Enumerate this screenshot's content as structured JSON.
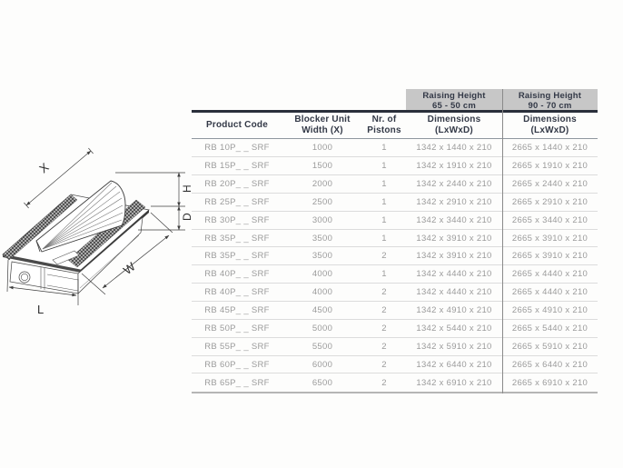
{
  "drawing": {
    "labels": {
      "x": "X",
      "h": "H",
      "d": "D",
      "w": "W",
      "l": "L"
    }
  },
  "table": {
    "column_group_headers": [
      {
        "line1": "Raising Height",
        "line2": "65 - 50 cm"
      },
      {
        "line1": "Raising Height",
        "line2": "90 - 70 cm"
      }
    ],
    "columns": [
      {
        "line1": "Product Code",
        "line2": ""
      },
      {
        "line1": "Blocker Unit",
        "line2": "Width (X)"
      },
      {
        "line1": "Nr. of",
        "line2": "Pistons"
      },
      {
        "line1": "Dimensions",
        "line2": "(LxWxD)"
      },
      {
        "line1": "Dimensions",
        "line2": "(LxWxD)"
      }
    ],
    "rows": [
      [
        "RB 10P_ _ SRF",
        "1000",
        "1",
        "1342 x 1440 x 210",
        "2665 x 1440 x 210"
      ],
      [
        "RB 15P_ _ SRF",
        "1500",
        "1",
        "1342 x 1910 x 210",
        "2665 x 1910 x 210"
      ],
      [
        "RB 20P_ _ SRF",
        "2000",
        "1",
        "1342 x 2440 x 210",
        "2665 x 2440 x 210"
      ],
      [
        "RB 25P_ _ SRF",
        "2500",
        "1",
        "1342 x 2910 x 210",
        "2665 x 2910 x 210"
      ],
      [
        "RB 30P_ _ SRF",
        "3000",
        "1",
        "1342 x 3440 x 210",
        "2665 x 3440 x 210"
      ],
      [
        "RB 35P_ _ SRF",
        "3500",
        "1",
        "1342 x 3910 x 210",
        "2665 x 3910 x 210"
      ],
      [
        "RB 35P_ _ SRF",
        "3500",
        "2",
        "1342 x 3910 x 210",
        "2665 x 3910 x 210"
      ],
      [
        "RB 40P_ _ SRF",
        "4000",
        "1",
        "1342 x 4440 x 210",
        "2665 x 4440 x 210"
      ],
      [
        "RB 40P_ _ SRF",
        "4000",
        "2",
        "1342 x 4440 x 210",
        "2665 x 4440 x 210"
      ],
      [
        "RB 45P_ _ SRF",
        "4500",
        "2",
        "1342 x 4910 x 210",
        "2665 x 4910 x 210"
      ],
      [
        "RB 50P_ _ SRF",
        "5000",
        "2",
        "1342 x 5440 x 210",
        "2665 x 5440 x 210"
      ],
      [
        "RB 55P_ _ SRF",
        "5500",
        "2",
        "1342 x 5910 x 210",
        "2665 x 5910 x 210"
      ],
      [
        "RB 60P_ _ SRF",
        "6000",
        "2",
        "1342 x 6440 x 210",
        "2665 x 6440 x 210"
      ],
      [
        "RB 65P_ _ SRF",
        "6500",
        "2",
        "1342 x 6910 x 210",
        "2665 x 6910 x 210"
      ]
    ],
    "colors": {
      "group_header_bg": "#c7c7c7",
      "header_text": "#333947",
      "data_text": "#9b9b9b",
      "heavy_rule": "#2a2f3a"
    }
  }
}
